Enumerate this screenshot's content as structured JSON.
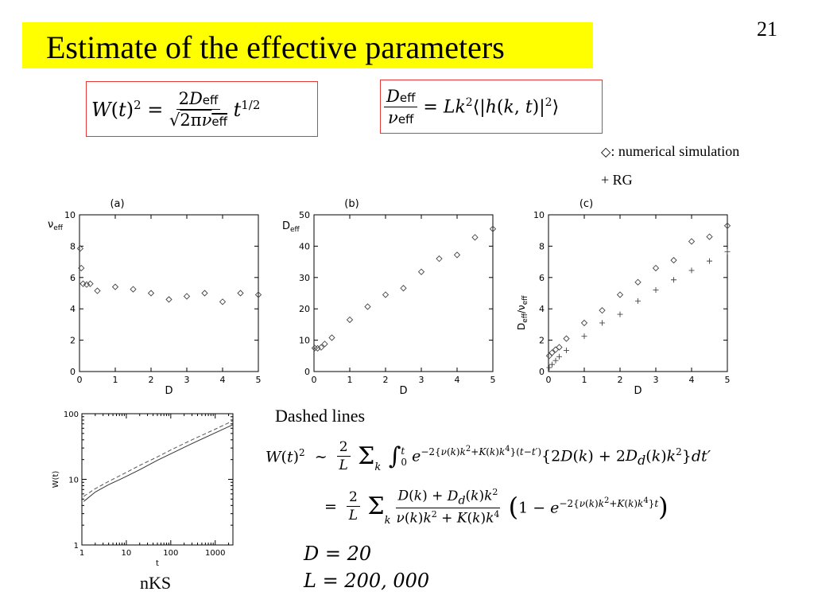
{
  "slide": {
    "title": "Estimate of the effective parameters",
    "page_number": "21"
  },
  "legend": {
    "diamond_symbol": "◇",
    "diamond_label": ": numerical simulation",
    "plus_symbol": "+",
    "plus_label": "RG"
  },
  "labels": {
    "dashed_lines": "Dashed lines",
    "nks": "nKS",
    "D_value": "D = 20",
    "L_value": "L = 200, 000"
  },
  "colors": {
    "title_bg": "#ffff00",
    "eq_border": "#e53935"
  },
  "chart_data": [
    {
      "type": "scatter",
      "panel": "(a)",
      "xlabel": "D",
      "ylabel": "ν_eff",
      "xlim": [
        0,
        5
      ],
      "ylim": [
        0,
        10
      ],
      "xticks": [
        0,
        1,
        2,
        3,
        4,
        5
      ],
      "yticks": [
        0,
        2,
        4,
        6,
        8,
        10
      ],
      "series": [
        {
          "marker": "diamond",
          "points": [
            [
              0.02,
              7.85
            ],
            [
              0.05,
              6.6
            ],
            [
              0.1,
              5.6
            ],
            [
              0.2,
              5.55
            ],
            [
              0.3,
              5.6
            ],
            [
              0.5,
              5.15
            ],
            [
              1.0,
              5.4
            ],
            [
              1.5,
              5.25
            ],
            [
              2.0,
              5.0
            ],
            [
              2.5,
              4.6
            ],
            [
              3.0,
              4.8
            ],
            [
              3.5,
              5.0
            ],
            [
              4.0,
              4.45
            ],
            [
              4.5,
              5.0
            ],
            [
              5.0,
              4.9
            ]
          ]
        }
      ]
    },
    {
      "type": "scatter",
      "panel": "(b)",
      "xlabel": "D",
      "ylabel": "D_eff",
      "xlim": [
        0,
        5
      ],
      "ylim": [
        0,
        50
      ],
      "xticks": [
        0,
        1,
        2,
        3,
        4,
        5
      ],
      "yticks": [
        0,
        10,
        20,
        30,
        40,
        50
      ],
      "series": [
        {
          "marker": "diamond",
          "points": [
            [
              0.02,
              7.5
            ],
            [
              0.1,
              7.4
            ],
            [
              0.2,
              7.7
            ],
            [
              0.3,
              8.8
            ],
            [
              0.5,
              10.8
            ],
            [
              1.0,
              16.5
            ],
            [
              1.5,
              20.7
            ],
            [
              2.0,
              24.5
            ],
            [
              2.5,
              26.6
            ],
            [
              3.0,
              31.8
            ],
            [
              3.5,
              36.0
            ],
            [
              4.0,
              37.2
            ],
            [
              4.5,
              42.8
            ],
            [
              5.0,
              45.5
            ]
          ]
        }
      ]
    },
    {
      "type": "scatter",
      "panel": "(c)",
      "xlabel": "D",
      "ylabel": "D_eff/ν_eff",
      "xlim": [
        0,
        5
      ],
      "ylim": [
        0,
        10
      ],
      "xticks": [
        0,
        1,
        2,
        3,
        4,
        5
      ],
      "yticks": [
        0,
        2,
        4,
        6,
        8,
        10
      ],
      "series": [
        {
          "marker": "diamond",
          "points": [
            [
              0.02,
              1.0
            ],
            [
              0.1,
              1.2
            ],
            [
              0.2,
              1.4
            ],
            [
              0.3,
              1.55
            ],
            [
              0.5,
              2.1
            ],
            [
              1.0,
              3.1
            ],
            [
              1.5,
              3.9
            ],
            [
              2.0,
              4.9
            ],
            [
              2.5,
              5.7
            ],
            [
              3.0,
              6.6
            ],
            [
              3.5,
              7.1
            ],
            [
              4.0,
              8.3
            ],
            [
              4.5,
              8.6
            ],
            [
              5.0,
              9.3
            ]
          ]
        },
        {
          "marker": "plus",
          "points": [
            [
              0.02,
              0.25
            ],
            [
              0.1,
              0.45
            ],
            [
              0.2,
              0.7
            ],
            [
              0.3,
              0.95
            ],
            [
              0.5,
              1.35
            ],
            [
              1.0,
              2.25
            ],
            [
              1.5,
              3.1
            ],
            [
              2.0,
              3.65
            ],
            [
              2.5,
              4.5
            ],
            [
              3.0,
              5.2
            ],
            [
              3.5,
              5.85
            ],
            [
              4.0,
              6.45
            ],
            [
              4.5,
              7.05
            ],
            [
              5.0,
              7.65
            ]
          ]
        }
      ]
    },
    {
      "type": "line",
      "panel": "nKS",
      "xlabel": "t",
      "ylabel": "W(t)",
      "xscale": "log",
      "yscale": "log",
      "xlim": [
        1,
        2500
      ],
      "ylim": [
        1,
        100
      ],
      "xticks": [
        1,
        10,
        100,
        1000
      ],
      "yticks": [
        1,
        10,
        100
      ],
      "series": [
        {
          "style": "solid",
          "x": [
            1.1,
            2,
            4,
            8,
            20,
            50,
            100,
            300,
            1000,
            2500
          ],
          "y": [
            4.6,
            6.4,
            8.3,
            10.3,
            14.0,
            19.5,
            24.5,
            35.0,
            51.0,
            68.0
          ]
        },
        {
          "style": "dashed",
          "x": [
            1.1,
            2,
            4,
            8,
            20,
            50,
            100,
            300,
            1000,
            2500
          ],
          "y": [
            5.5,
            7.2,
            9.3,
            11.8,
            16.3,
            22.0,
            28.0,
            40.0,
            58.0,
            78.0
          ]
        }
      ]
    }
  ]
}
